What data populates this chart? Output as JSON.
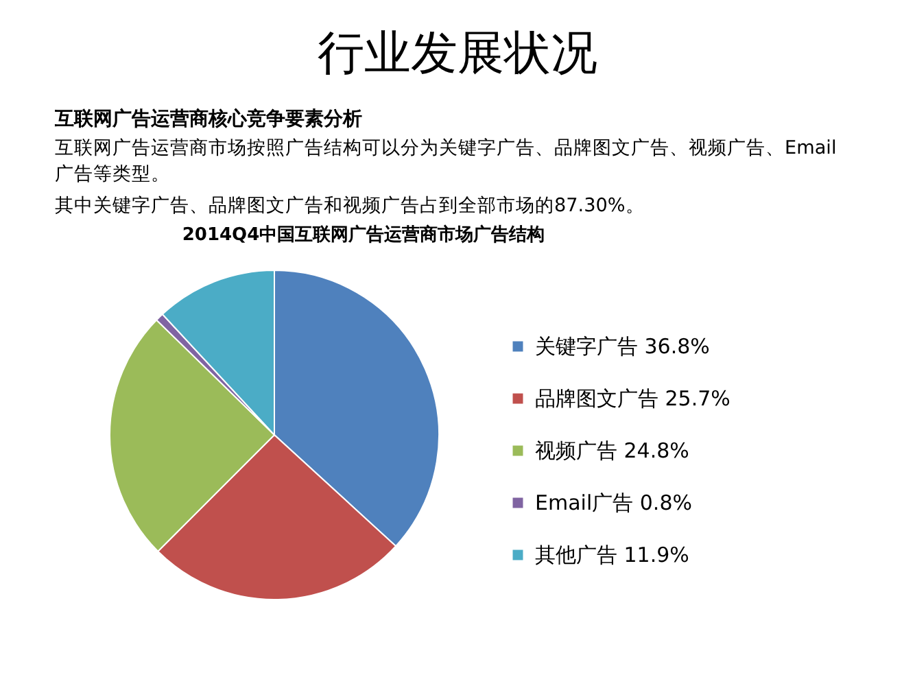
{
  "chart_data": {
    "type": "pie",
    "title": "2014Q4中国互联网广告运营商市场广告结构",
    "annotations": [
      "行业发展状况",
      "互联网广告运营商核心竞争要素分析",
      "互联网广告运营商市场按照广告结构可以分为关键字广告、品牌图文广告、视频广告、Email广告等类型。",
      "其中关键字广告、品牌图文广告和视频广告占到全部市场的87.30%。"
    ],
    "categories": [
      "关键字广告",
      "品牌图文广告",
      "视频广告",
      "Email广告",
      "其他广告"
    ],
    "values": [
      36.8,
      25.7,
      24.8,
      0.8,
      11.9
    ],
    "value_labels": [
      "36.8%",
      "25.7%",
      "24.8%",
      "0.8%",
      "11.9%"
    ],
    "colors": [
      "#4f81bd",
      "#c0504d",
      "#9bbb59",
      "#8064a2",
      "#4bacc6"
    ],
    "legend": "right"
  }
}
